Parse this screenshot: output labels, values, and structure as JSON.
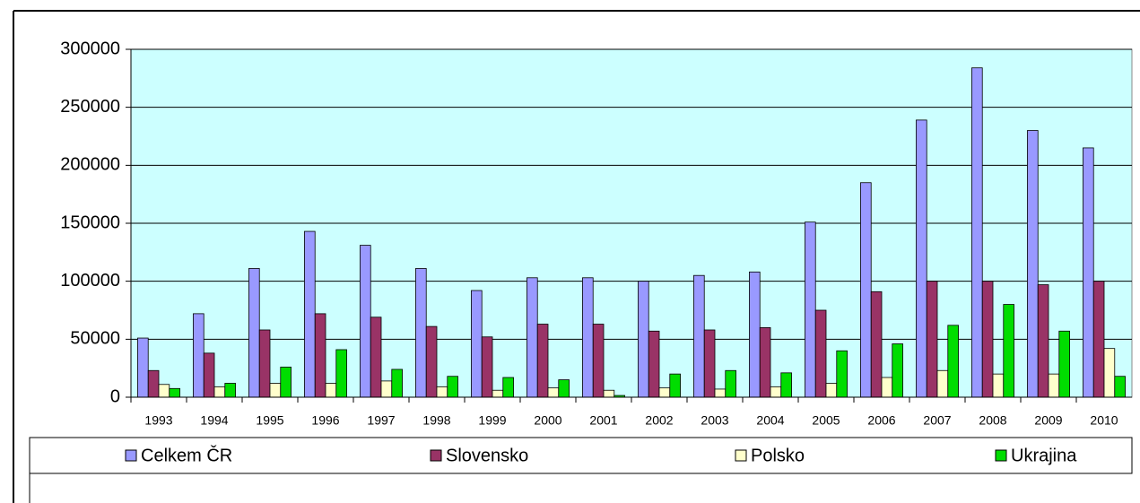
{
  "chart_data": {
    "type": "bar",
    "categories": [
      "1993",
      "1994",
      "1995",
      "1996",
      "1997",
      "1998",
      "1999",
      "2000",
      "2001",
      "2002",
      "2003",
      "2004",
      "2005",
      "2006",
      "2007",
      "2008",
      "2009",
      "2010"
    ],
    "series": [
      {
        "name": "Celkem ČR",
        "color": "#9999ff",
        "values": [
          51000,
          72000,
          111000,
          143000,
          131000,
          111000,
          92000,
          103000,
          103000,
          100000,
          105000,
          108000,
          151000,
          185000,
          239000,
          284000,
          230000,
          215000
        ]
      },
      {
        "name": "Slovensko",
        "color": "#993366",
        "values": [
          23000,
          38000,
          58000,
          72000,
          69000,
          61000,
          52000,
          63000,
          63000,
          57000,
          58000,
          60000,
          75000,
          91000,
          100000,
          100000,
          97000,
          100000
        ]
      },
      {
        "name": "Polsko",
        "color": "#ffffcc",
        "values": [
          11000,
          9000,
          12000,
          12000,
          14000,
          9000,
          6000,
          8000,
          6000,
          8000,
          7000,
          9000,
          12000,
          17000,
          23000,
          20000,
          20000,
          42000
        ]
      },
      {
        "name": "Ukrajina",
        "color": "#00dd00",
        "values": [
          7500,
          12000,
          26000,
          41000,
          24000,
          18000,
          17000,
          15000,
          1500,
          20000,
          23000,
          21000,
          40000,
          46000,
          62000,
          80000,
          57000,
          18000
        ]
      }
    ],
    "ylim": [
      0,
      300000
    ],
    "yticks": [
      0,
      50000,
      100000,
      150000,
      200000,
      250000,
      300000
    ],
    "grid": true,
    "legend": "bottom"
  }
}
